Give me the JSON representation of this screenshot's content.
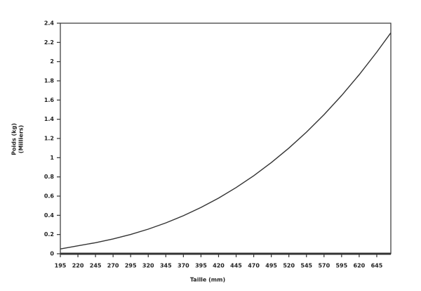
{
  "chart_data": {
    "type": "line",
    "xlabel": "Taille (mm)",
    "ylabel": [
      "Poids (kg)",
      "(Milliers)"
    ],
    "x": [
      195,
      220,
      245,
      270,
      295,
      320,
      345,
      370,
      395,
      420,
      445,
      470,
      495,
      520,
      545,
      570,
      595,
      620,
      645,
      665
    ],
    "series": [
      {
        "color": "#333333",
        "values": [
          0.05,
          0.083,
          0.115,
          0.154,
          0.201,
          0.256,
          0.321,
          0.396,
          0.482,
          0.579,
          0.689,
          0.812,
          0.949,
          1.1,
          1.266,
          1.448,
          1.647,
          1.864,
          2.099,
          2.3
        ]
      }
    ],
    "xlim": [
      195,
      665
    ],
    "xticks": [
      195,
      220,
      245,
      270,
      295,
      320,
      345,
      370,
      395,
      420,
      445,
      470,
      495,
      520,
      545,
      570,
      595,
      620,
      645
    ],
    "ylim": [
      0,
      2.4
    ],
    "yticks": [
      0,
      0.2,
      0.4,
      0.6,
      0.8,
      1,
      1.2,
      1.4,
      1.6,
      1.8,
      2,
      2.2,
      2.4
    ],
    "grid": false
  }
}
